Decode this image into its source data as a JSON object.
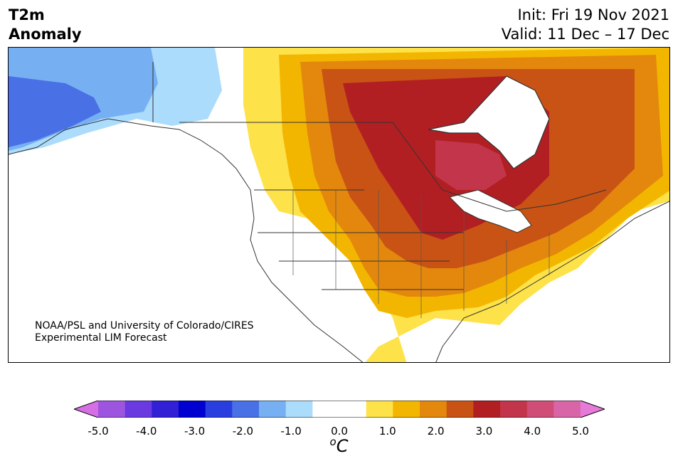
{
  "title": {
    "line1": "T2m",
    "line2": "Anomaly"
  },
  "init": {
    "line1": "Init: Fri 19 Nov 2021",
    "line2": "Valid: 11 Dec – 17 Dec"
  },
  "credit": {
    "line1": "NOAA/PSL and University of Colorado/CIRES",
    "line2": "Experimental LIM Forecast"
  },
  "colorbar": {
    "unit_base": "C",
    "unit_sup": "o",
    "ticks": [
      "-5.0",
      "-4.0",
      "-3.0",
      "-2.0",
      "-1.0",
      "0.0",
      "1.0",
      "2.0",
      "3.0",
      "4.0",
      "5.0"
    ],
    "colors": [
      "#d56fe3",
      "#9d55e0",
      "#6a3ae0",
      "#3220d7",
      "#0000d0",
      "#2a3ee0",
      "#4a70e6",
      "#76b0f2",
      "#acdcfb",
      "#ffffff",
      "#ffffff",
      "#fde24a",
      "#f3b600",
      "#e3880d",
      "#c95314",
      "#b21f22",
      "#c2354a",
      "#d04d78",
      "#d965a9",
      "#e67ad8"
    ]
  }
}
